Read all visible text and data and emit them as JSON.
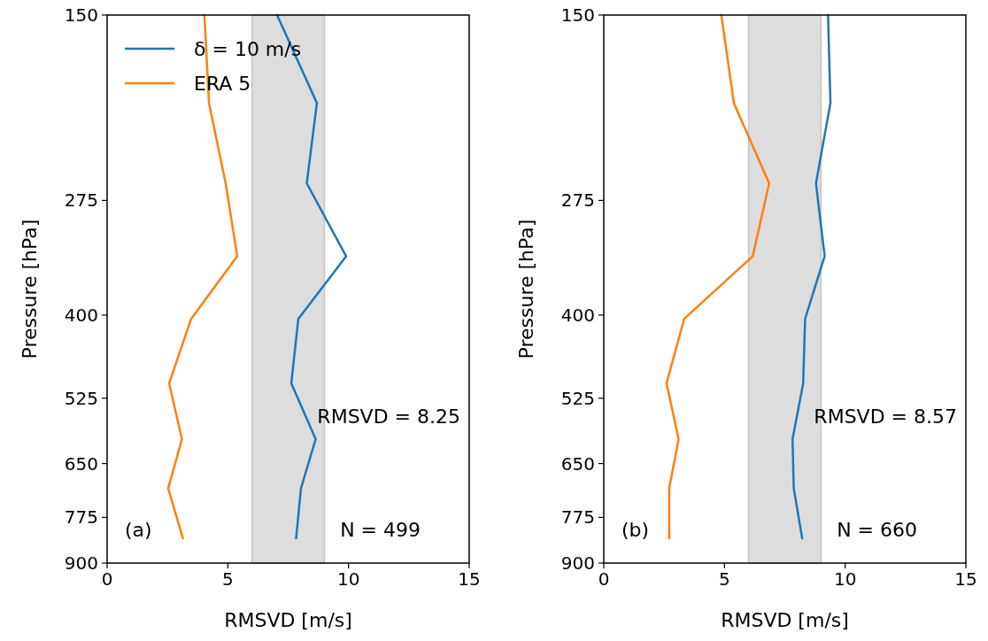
{
  "chart_data": [
    {
      "type": "line",
      "xlabel": "RMSVD [m/s]",
      "ylabel": "Pressure [hPa]",
      "log": "y",
      "xlim": [
        0,
        15
      ],
      "xticks": [
        0,
        5,
        10,
        15
      ],
      "ylim": [
        900,
        150
      ],
      "yticks": [
        150,
        275,
        400,
        525,
        650,
        775,
        900
      ],
      "legend": "top left",
      "grid": false,
      "series": [
        {
          "name": "δ = 10 m/s",
          "color": "#1f77b4",
          "x": [
            7.04,
            8.69,
            8.27,
            9.9,
            7.92,
            7.63,
            8.64,
            8.03,
            7.83
          ],
          "values": [
            150,
            200,
            260,
            330,
            405,
            500,
            600,
            705,
            830
          ]
        },
        {
          "name": "ERA 5",
          "color": "#ff7f0e",
          "x": [
            4.03,
            4.22,
            4.91,
            5.39,
            3.48,
            2.57,
            3.1,
            2.53,
            3.14
          ],
          "values": [
            150,
            200,
            260,
            330,
            405,
            500,
            600,
            705,
            830
          ]
        }
      ],
      "bands": [
        {
          "axis": "x",
          "from": 6,
          "to": 9,
          "color": "#dddddd"
        }
      ],
      "annotations": [
        "RMSVD = 8.25",
        "N = 499",
        "(a)"
      ]
    },
    {
      "type": "line",
      "xlabel": "RMSVD [m/s]",
      "ylabel": "Pressure [hPa]",
      "log": "y",
      "xlim": [
        0,
        15
      ],
      "xticks": [
        0,
        5,
        10,
        15
      ],
      "ylim": [
        900,
        150
      ],
      "yticks": [
        150,
        275,
        400,
        525,
        650,
        775,
        900
      ],
      "grid": false,
      "series": [
        {
          "color": "#1f77b4",
          "x": [
            9.29,
            9.39,
            8.79,
            9.15,
            8.34,
            8.26,
            7.82,
            7.87,
            8.22
          ],
          "values": [
            150,
            200,
            260,
            330,
            405,
            500,
            600,
            705,
            830
          ]
        },
        {
          "color": "#ff7f0e",
          "x": [
            4.87,
            5.39,
            6.85,
            6.17,
            3.33,
            2.6,
            3.1,
            2.71,
            2.71
          ],
          "values": [
            150,
            200,
            260,
            330,
            405,
            500,
            600,
            705,
            830
          ]
        }
      ],
      "bands": [
        {
          "axis": "x",
          "from": 6,
          "to": 9,
          "color": "#dddddd"
        }
      ],
      "annotations": [
        "RMSVD = 8.57",
        "N = 660",
        "(b)"
      ]
    }
  ]
}
